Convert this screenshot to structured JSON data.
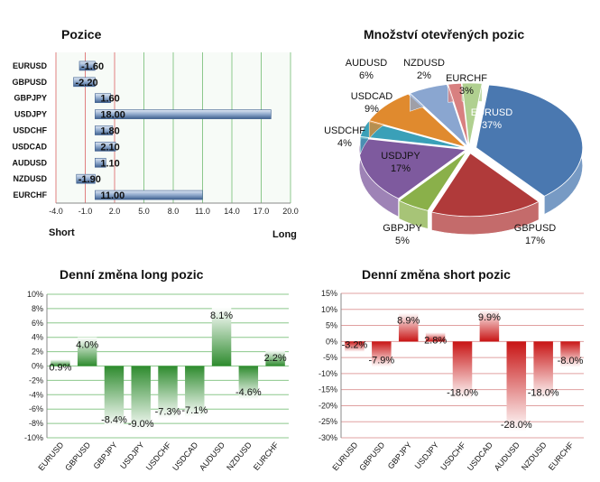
{
  "chart_data": [
    {
      "type": "bar",
      "orientation": "horizontal",
      "title": "Pozice",
      "categories": [
        "EURUSD",
        "GBPUSD",
        "GBPJPY",
        "USDJPY",
        "USDCHF",
        "USDCAD",
        "AUDUSD",
        "NZDUSD",
        "EURCHF"
      ],
      "values": [
        -1.6,
        -2.2,
        1.6,
        18.0,
        1.8,
        2.1,
        1.1,
        -1.9,
        11.0
      ],
      "value_labels": [
        "-1.60",
        "-2.20",
        "1.60",
        "18.00",
        "1.80",
        "2.10",
        "1.10",
        "-1.90",
        "11.00"
      ],
      "xlim": [
        -4.0,
        20.0
      ],
      "xticks": [
        "-4.0",
        "-1.0",
        "2.0",
        "5.0",
        "8.0",
        "11.0",
        "14.0",
        "17.0",
        "20.0"
      ],
      "xlabel_left": "Short",
      "xlabel_right": "Long",
      "grid": true
    },
    {
      "type": "pie",
      "title": "Množství otevřených pozic",
      "labels": [
        "EURUSD",
        "GBPUSD",
        "GBPJPY",
        "USDJPY",
        "USDCHF",
        "USDCAD",
        "AUDUSD",
        "NZDUSD",
        "EURCHF"
      ],
      "values": [
        37,
        17,
        5,
        17,
        4,
        9,
        6,
        2,
        3
      ],
      "value_labels": [
        "37%",
        "17%",
        "5%",
        "17%",
        "4%",
        "9%",
        "6%",
        "2%",
        "3%"
      ],
      "colors": [
        "#4a78b0",
        "#b03a3a",
        "#8ab04a",
        "#7e5a9e",
        "#3aa0b8",
        "#e08a2e",
        "#8aa6d0",
        "#d88080",
        "#b0d090"
      ]
    },
    {
      "type": "bar",
      "title": "Denní změna long pozic",
      "categories": [
        "EURUSD",
        "GBPUSD",
        "GBPJPY",
        "USDJPY",
        "USDCHF",
        "USDCAD",
        "AUDUSD",
        "NZDUSD",
        "EURCHF"
      ],
      "values": [
        0.9,
        4.0,
        -8.4,
        -9.0,
        -7.3,
        -7.1,
        8.1,
        -4.6,
        2.2
      ],
      "value_labels": [
        "0.9%",
        "4.0%",
        "-8.4%",
        "-9.0%",
        "-7.3%",
        "-7.1%",
        "8.1%",
        "-4.6%",
        "2.2%"
      ],
      "ylim": [
        -10,
        10
      ],
      "yticks": [
        "10%",
        "8%",
        "6%",
        "4%",
        "2%",
        "0%",
        "-2%",
        "-4%",
        "-6%",
        "-8%",
        "-10%"
      ],
      "color": "#2e8b2e",
      "grid": true
    },
    {
      "type": "bar",
      "title": "Denní změna short pozic",
      "categories": [
        "EURUSD",
        "GBPUSD",
        "GBPJPY",
        "USDJPY",
        "USDCHF",
        "USDCAD",
        "AUDUSD",
        "NZDUSD",
        "EURCHF"
      ],
      "values": [
        -3.2,
        -7.9,
        8.9,
        2.8,
        -18.0,
        9.9,
        -28.0,
        -18.0,
        -8.0
      ],
      "value_labels": [
        "-3.2%",
        "-7.9%",
        "8.9%",
        "2.8%",
        "-18.0%",
        "9.9%",
        "-28.0%",
        "-18.0%",
        "-8.0%"
      ],
      "ylim": [
        -30,
        15
      ],
      "yticks": [
        "15%",
        "10%",
        "5%",
        "0%",
        "-5%",
        "-10%",
        "-15%",
        "-20%",
        "-25%",
        "-30%"
      ],
      "color": "#c81414",
      "grid": true
    }
  ]
}
